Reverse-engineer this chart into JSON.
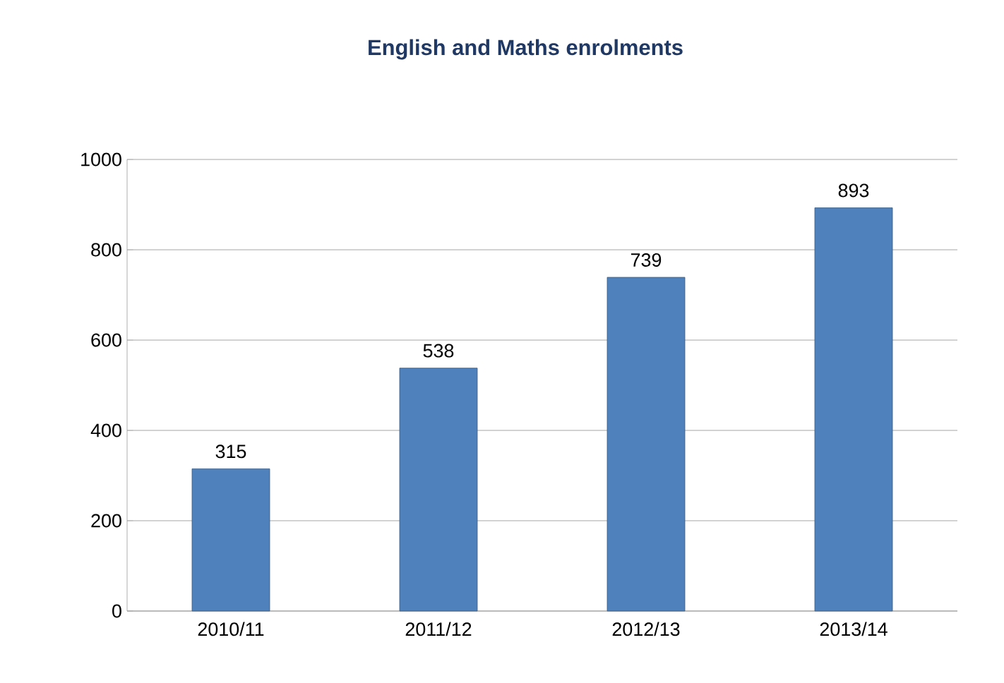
{
  "chart_data": {
    "type": "bar",
    "title": "English and Maths enrolments",
    "categories": [
      "2010/11",
      "2011/12",
      "2012/13",
      "2013/14"
    ],
    "values": [
      315,
      538,
      739,
      893
    ],
    "color": "#4f81bd",
    "ylim": [
      0,
      1000
    ],
    "yticks": [
      0,
      200,
      400,
      600,
      800,
      1000
    ],
    "grid": "y",
    "data_labels": true
  }
}
